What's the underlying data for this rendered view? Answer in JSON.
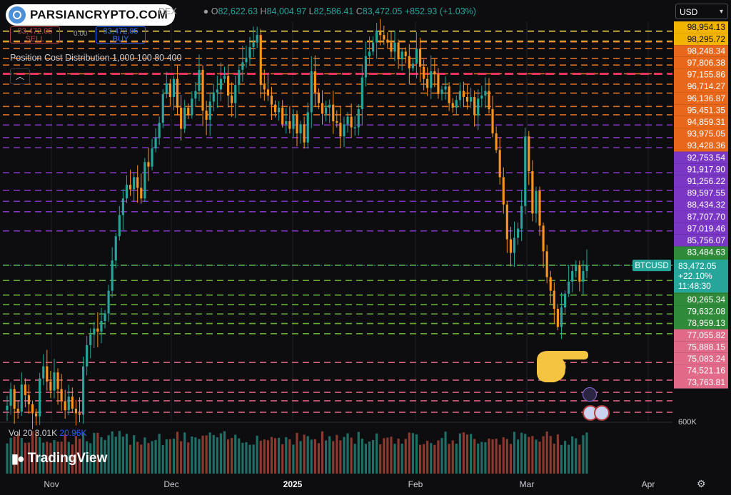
{
  "brand": {
    "name": "PARSIANCRYPTO.COM"
  },
  "header": {
    "symbol_suffix": "DEX",
    "ohlc": {
      "open_label": "O",
      "open": "82,622.63",
      "high_label": "H",
      "high": "84,004.97",
      "low_label": "L",
      "low": "82,586.41",
      "close_label": "C",
      "close": "83,472.05",
      "change": "+852.93 (+1.03%)"
    },
    "sell": {
      "price": "83,472.05",
      "label": "SELL"
    },
    "buy": {
      "price": "83,472.05",
      "label": "BUY"
    },
    "spread": "0.00",
    "indicator": "Position Cost Distribution 1,000 100 80 400",
    "currency": "USD"
  },
  "colors": {
    "up": "#26a69a",
    "down": "#f7931e",
    "accent": "#2962ff",
    "level_yellow": "#ffe84a",
    "level_orange": "#f07a25",
    "level_purple": "#8a3ad0",
    "level_green": "#6fbf3a",
    "level_pink": "#e86a8a",
    "max_volume_line": "#e8335c"
  },
  "chart_data": {
    "type": "candlestick",
    "symbol": "BTCUSD",
    "x_axis": [
      "Nov",
      "Dec",
      "2025",
      "Feb",
      "Mar",
      "Apr"
    ],
    "ylim": [
      73200,
      99600
    ],
    "current_price": {
      "label": "BTCUSD",
      "value": "83,472.05",
      "change": "+22.10%",
      "countdown": "11:48:30"
    },
    "price_levels": [
      {
        "price": "98,954.13",
        "group": "yellow"
      },
      {
        "price": "98,295.72",
        "group": "yellow"
      },
      {
        "price": "98,248.34",
        "group": "orange"
      },
      {
        "price": "97,806.38",
        "group": "orange"
      },
      {
        "price": "97,155.86",
        "group": "orange"
      },
      {
        "price": "96,714.27",
        "group": "orange"
      },
      {
        "price": "96,136.87",
        "group": "orange"
      },
      {
        "price": "95,451.35",
        "group": "orange"
      },
      {
        "price": "94,859.31",
        "group": "orange"
      },
      {
        "price": "93,975.05",
        "group": "orange"
      },
      {
        "price": "93,428.36",
        "group": "orange"
      },
      {
        "price": "92,753.54",
        "group": "purple"
      },
      {
        "price": "91,917.90",
        "group": "purple"
      },
      {
        "price": "91,256.22",
        "group": "purple"
      },
      {
        "price": "89,597.55",
        "group": "purple"
      },
      {
        "price": "88,434.32",
        "group": "purple"
      },
      {
        "price": "87,707.70",
        "group": "purple"
      },
      {
        "price": "87,019.46",
        "group": "purple"
      },
      {
        "price": "85,756.07",
        "group": "purple"
      },
      {
        "price": "83,484.63",
        "group": "green"
      },
      {
        "price": "82,475.00",
        "group": "green"
      },
      {
        "price": "81,512.42",
        "group": "green"
      },
      {
        "price": "80,880.76",
        "group": "green"
      },
      {
        "price": "80,265.34",
        "group": "green"
      },
      {
        "price": "79,632.08",
        "group": "green"
      },
      {
        "price": "78,959.13",
        "group": "green"
      },
      {
        "price": "77,055.82",
        "group": "pink"
      },
      {
        "price": "75,888.15",
        "group": "pink"
      },
      {
        "price": "75,083.24",
        "group": "pink"
      },
      {
        "price": "74,521.16",
        "group": "pink"
      },
      {
        "price": "73,763.81",
        "group": "pink"
      }
    ],
    "max_volume_level": 96137,
    "closes": [
      74200,
      75300,
      74000,
      73800,
      75600,
      74900,
      74300,
      73700,
      73500,
      76000,
      76800,
      75800,
      75200,
      76400,
      75300,
      74500,
      73900,
      74800,
      74000,
      73700,
      73600,
      76800,
      78200,
      78900,
      79300,
      79100,
      79800,
      80300,
      81800,
      83800,
      85400,
      86800,
      87900,
      88800,
      88500,
      89300,
      88600,
      87900,
      90300,
      90000,
      91200,
      91900,
      92900,
      94800,
      95500,
      94600,
      95800,
      93900,
      92500,
      93900,
      93400,
      94500,
      95000,
      96400,
      93700,
      93100,
      94300,
      94900,
      95100,
      95800,
      96000,
      94700,
      94200,
      95400,
      96400,
      96900,
      97200,
      97900,
      98200,
      98700,
      95400,
      95100,
      94700,
      94100,
      93600,
      93900,
      92800,
      93000,
      92500,
      93400,
      92200,
      92800,
      91600,
      93600,
      96300,
      94900,
      94200,
      93500,
      93900,
      94100,
      93000,
      92900,
      92000,
      92800,
      93300,
      92600,
      92600,
      93800,
      95900,
      97300,
      97600,
      98200,
      99000,
      98700,
      98400,
      98200,
      97600,
      98200,
      97100,
      97600,
      97300,
      96500,
      96800,
      97800,
      96600,
      95800,
      95200,
      96300,
      96100,
      94800,
      95100,
      95300,
      94200,
      93900,
      94400,
      95000,
      94600,
      94300,
      94600,
      93400,
      94500,
      94700,
      95000,
      93800,
      92200,
      91100,
      89300,
      87500,
      85200,
      84300,
      85300,
      85900,
      87400,
      92000,
      89700,
      86900,
      88400,
      86100,
      84400,
      82700,
      81800,
      80600,
      79400,
      80700,
      81600,
      82400,
      83100,
      83500,
      82400,
      83100,
      83472
    ]
  },
  "volume": {
    "label": "Vol 20",
    "value1": "3.01K",
    "value2": "20.96K"
  },
  "axis_extra": {
    "partial_label": "600K"
  },
  "footer": {
    "brand": "TradingView"
  }
}
